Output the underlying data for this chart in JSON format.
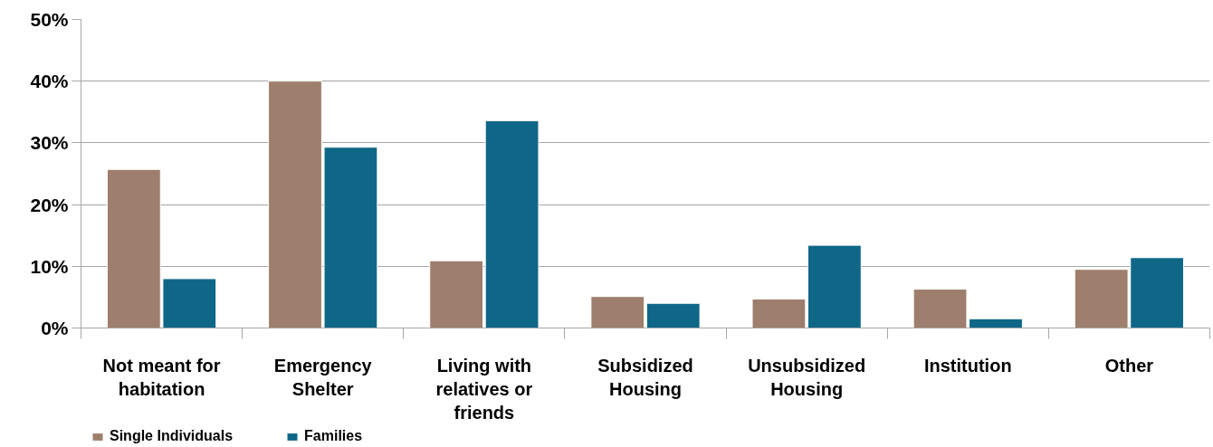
{
  "chart_data": {
    "type": "bar",
    "categories": [
      "Not meant for habitation",
      "Emergency Shelter",
      "Living with relatives or friends",
      "Subsidized Housing",
      "Unsubsidized Housing",
      "Institution",
      "Other"
    ],
    "series": [
      {
        "name": "Single Individuals",
        "color": "#9e7e6c",
        "values": [
          25.7,
          40.0,
          10.9,
          5.1,
          4.7,
          6.3,
          9.5
        ]
      },
      {
        "name": "Families",
        "color": "#0f6787",
        "values": [
          8.0,
          29.3,
          33.6,
          4.0,
          13.4,
          1.5,
          11.4
        ]
      }
    ],
    "ylim": [
      0,
      50
    ],
    "yticks": [
      {
        "value": 0,
        "label": "0%"
      },
      {
        "value": 10,
        "label": "10%"
      },
      {
        "value": 20,
        "label": "20%"
      },
      {
        "value": 30,
        "label": "30%"
      },
      {
        "value": 40,
        "label": "40%"
      },
      {
        "value": 50,
        "label": "50%"
      }
    ],
    "grid": "y",
    "legend": "bottom left"
  }
}
